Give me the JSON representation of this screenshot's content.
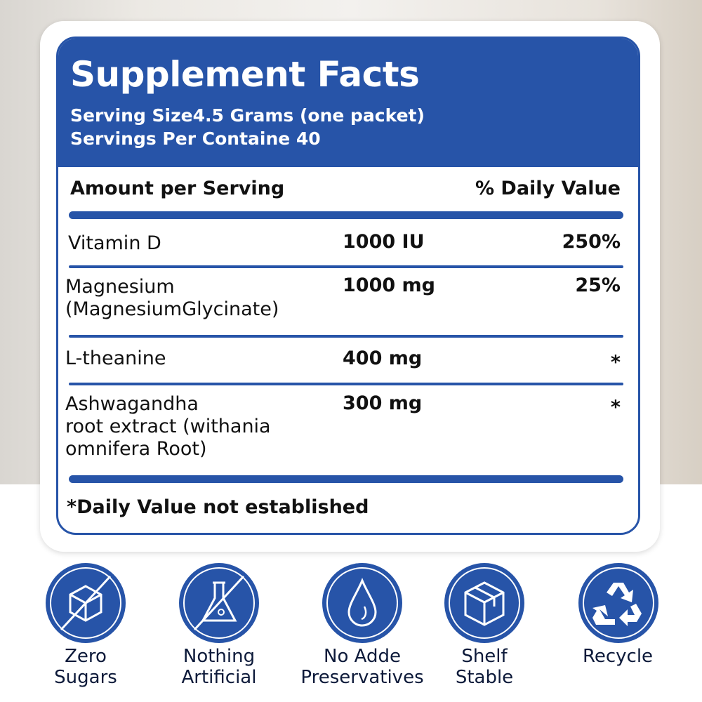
{
  "title": "Supplement Facts",
  "serving_size": "Serving Size4.5 Grams (one packet)",
  "servings_per_container": "Servings Per Containe 40",
  "header_amount": "Amount per Serving",
  "header_dv": "% Daily Value",
  "rows": [
    {
      "name": [
        "Vitamin D"
      ],
      "amount": "1000 IU",
      "dv": "250%"
    },
    {
      "name": [
        "Magnesium",
        "(MagnesiumGlycinate)"
      ],
      "amount": "1000 mg",
      "dv": "25%"
    },
    {
      "name": [
        "L-theanine"
      ],
      "amount": "400 mg",
      "dv": "*"
    },
    {
      "name": [
        "Ashwagandha",
        "root extract (withania",
        "omnifera Root)"
      ],
      "amount": "300 mg",
      "dv": "*"
    }
  ],
  "footnote": "*Daily Value not established",
  "badges": [
    {
      "icon": "no-sugar-cube-icon",
      "label": [
        "Zero",
        "Sugars"
      ]
    },
    {
      "icon": "no-flask-icon",
      "label": [
        "Nothing",
        "Artificial"
      ]
    },
    {
      "icon": "water-drop-icon",
      "label": [
        "No Adde",
        "Preservatives"
      ]
    },
    {
      "icon": "box-icon",
      "label": [
        "Shelf",
        "Stable"
      ]
    },
    {
      "icon": "recycle-icon",
      "label": [
        "Recycle"
      ]
    }
  ],
  "colors": {
    "brand_blue": "#2754a8"
  }
}
